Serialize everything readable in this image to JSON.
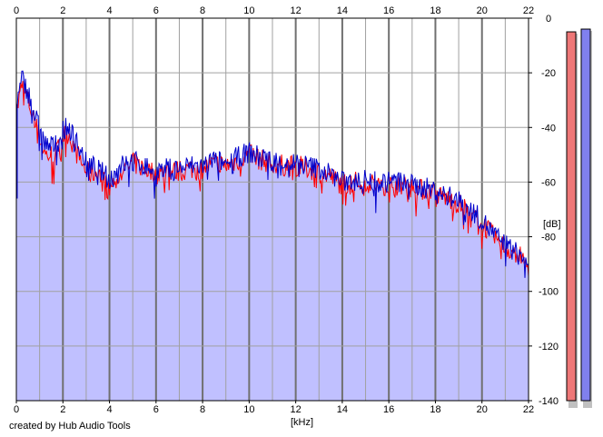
{
  "credit": "created by Hub Audio Tools",
  "colors": {
    "background": "#ffffff",
    "plot_fill": "#c0c0ff",
    "grid_minor": "#a0a0a0",
    "grid_major": "#707070",
    "left_channel": "#ff0000",
    "right_channel": "#0000cc",
    "meter_left": "#ee7777",
    "meter_right": "#8080ee"
  },
  "chart_data": {
    "type": "area",
    "title": "",
    "xlabel": "[kHz]",
    "ylabel": "[dB]",
    "xlim": [
      0,
      22
    ],
    "ylim": [
      -140,
      0
    ],
    "x_ticks": [
      "0",
      "2",
      "4",
      "6",
      "8",
      "10",
      "12",
      "14",
      "16",
      "18",
      "20",
      "22"
    ],
    "y_ticks": [
      "0",
      "-20",
      "-40",
      "-60",
      "-80",
      "-100",
      "-120",
      "-140"
    ],
    "x_ticks_top": true,
    "grid": true,
    "series": [
      {
        "color": "#ff0000",
        "x": [
          0,
          0.25,
          0.5,
          0.75,
          1,
          1.25,
          1.5,
          1.75,
          2,
          2.25,
          2.5,
          2.75,
          3,
          3.25,
          3.5,
          3.75,
          4,
          4.25,
          4.5,
          4.75,
          5,
          5.5,
          6,
          6.5,
          7,
          7.5,
          8,
          8.5,
          9,
          9.5,
          10,
          10.5,
          11,
          11.5,
          12,
          12.5,
          13,
          13.5,
          14,
          14.5,
          15,
          15.5,
          16,
          16.5,
          17,
          17.5,
          18,
          18.5,
          19,
          19.5,
          20,
          20.5,
          21,
          21.5,
          22
        ],
        "values": [
          -35,
          -24,
          -30,
          -37,
          -44,
          -50,
          -50,
          -49,
          -43,
          -42,
          -48,
          -52,
          -56,
          -57,
          -56,
          -60,
          -62,
          -60,
          -56,
          -55,
          -53,
          -55,
          -57,
          -56,
          -56,
          -55,
          -55,
          -53,
          -54,
          -52,
          -50,
          -52,
          -53,
          -54,
          -54,
          -55,
          -56,
          -58,
          -61,
          -60,
          -60,
          -61,
          -61,
          -61,
          -62,
          -63,
          -64,
          -66,
          -68,
          -71,
          -75,
          -80,
          -84,
          -86,
          -91
        ]
      },
      {
        "color": "#0000cc",
        "x": [
          0,
          0.25,
          0.5,
          0.75,
          1,
          1.25,
          1.5,
          1.75,
          2,
          2.25,
          2.5,
          2.75,
          3,
          3.25,
          3.5,
          3.75,
          4,
          4.25,
          4.5,
          4.75,
          5,
          5.5,
          6,
          6.5,
          7,
          7.5,
          8,
          8.5,
          9,
          9.5,
          10,
          10.5,
          11,
          11.5,
          12,
          12.5,
          13,
          13.5,
          14,
          14.5,
          15,
          15.5,
          16,
          16.5,
          17,
          17.5,
          18,
          18.5,
          19,
          19.5,
          20,
          20.5,
          21,
          21.5,
          22
        ],
        "values": [
          -33,
          -22,
          -27,
          -34,
          -41,
          -46,
          -47,
          -46,
          -41,
          -40,
          -44,
          -48,
          -53,
          -54,
          -55,
          -57,
          -59,
          -57,
          -54,
          -53,
          -52,
          -54,
          -56,
          -55,
          -55,
          -54,
          -54,
          -52,
          -53,
          -51,
          -49,
          -51,
          -52,
          -53,
          -53,
          -54,
          -55,
          -57,
          -60,
          -59,
          -59,
          -60,
          -60,
          -60,
          -61,
          -62,
          -63,
          -65,
          -67,
          -70,
          -74,
          -79,
          -83,
          -86,
          -90
        ]
      }
    ],
    "meters": [
      {
        "channel": "left",
        "level_db": -5
      },
      {
        "channel": "right",
        "level_db": -4
      }
    ]
  }
}
